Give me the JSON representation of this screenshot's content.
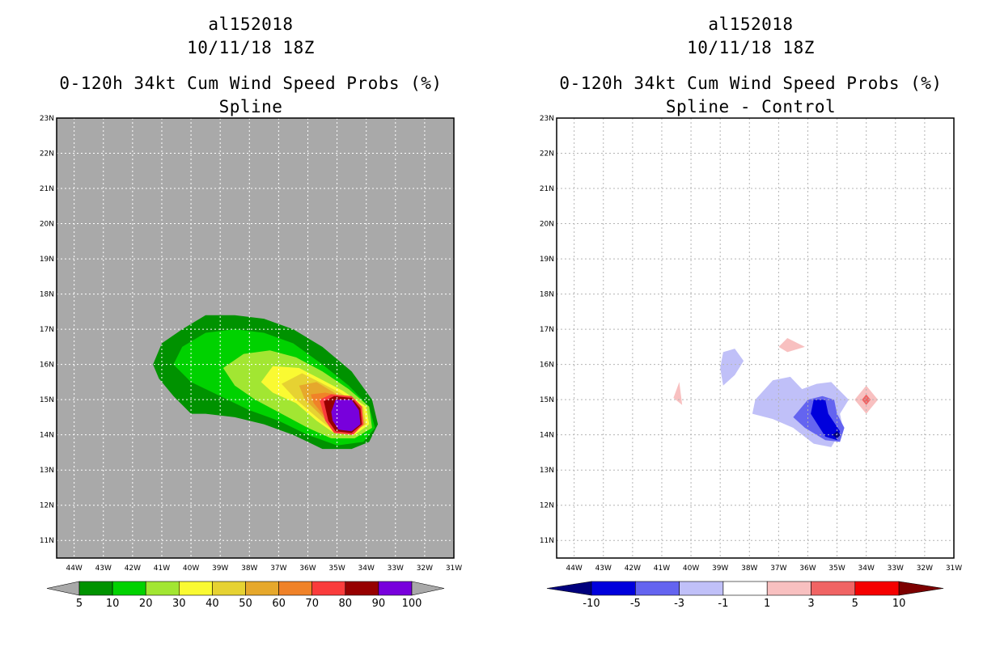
{
  "chart_data": [
    {
      "type": "filled-contour",
      "storm_id": "al152018",
      "date_label": "10/11/18 18Z",
      "title": "0-120h 34kt Cum Wind Speed Probs (%)",
      "subtitle": "Spline",
      "x_ticks": [
        "44W",
        "43W",
        "42W",
        "41W",
        "40W",
        "39W",
        "38W",
        "37W",
        "36W",
        "35W",
        "34W",
        "33W",
        "32W",
        "31W"
      ],
      "y_ticks": [
        "11N",
        "12N",
        "13N",
        "14N",
        "15N",
        "16N",
        "17N",
        "18N",
        "19N",
        "20N",
        "21N",
        "22N",
        "23N"
      ],
      "xlim": [
        -44.6,
        -31.0
      ],
      "ylim": [
        10.5,
        23.0
      ],
      "background_color": "#a9a9a9",
      "colorbar": {
        "labels": [
          "5",
          "10",
          "20",
          "30",
          "40",
          "50",
          "60",
          "70",
          "80",
          "90",
          "100"
        ],
        "colors": [
          "#009200",
          "#00d200",
          "#a2e632",
          "#fafa32",
          "#e6d232",
          "#e6a82c",
          "#f08228",
          "#fa3c3c",
          "#960000",
          "#7800dc"
        ],
        "end_color": "#a9a9a9"
      },
      "contours": [
        {
          "level": 5,
          "color": "#009200",
          "polygon": [
            [
              -41.3,
              16.0
            ],
            [
              -41.0,
              16.6
            ],
            [
              -40.3,
              17.0
            ],
            [
              -39.5,
              17.4
            ],
            [
              -38.5,
              17.4
            ],
            [
              -37.5,
              17.3
            ],
            [
              -36.5,
              17.0
            ],
            [
              -35.5,
              16.5
            ],
            [
              -34.5,
              15.8
            ],
            [
              -33.8,
              15.0
            ],
            [
              -33.6,
              14.3
            ],
            [
              -33.9,
              13.8
            ],
            [
              -34.5,
              13.6
            ],
            [
              -35.5,
              13.6
            ],
            [
              -36.5,
              14.0
            ],
            [
              -37.5,
              14.3
            ],
            [
              -38.5,
              14.5
            ],
            [
              -39.5,
              14.6
            ],
            [
              -40.0,
              14.6
            ],
            [
              -40.6,
              15.1
            ],
            [
              -41.1,
              15.6
            ]
          ]
        },
        {
          "level": 10,
          "color": "#00d200",
          "polygon": [
            [
              -40.6,
              16.0
            ],
            [
              -40.3,
              16.5
            ],
            [
              -39.5,
              16.9
            ],
            [
              -38.5,
              17.0
            ],
            [
              -37.5,
              16.9
            ],
            [
              -36.5,
              16.6
            ],
            [
              -35.5,
              16.0
            ],
            [
              -34.6,
              15.4
            ],
            [
              -33.9,
              14.8
            ],
            [
              -33.7,
              14.2
            ],
            [
              -34.1,
              13.8
            ],
            [
              -35.0,
              13.7
            ],
            [
              -36.0,
              14.0
            ],
            [
              -37.0,
              14.4
            ],
            [
              -38.0,
              14.7
            ],
            [
              -39.0,
              15.1
            ],
            [
              -40.0,
              15.5
            ]
          ]
        },
        {
          "level": 20,
          "color": "#a2e632",
          "polygon": [
            [
              -38.9,
              15.9
            ],
            [
              -38.2,
              16.3
            ],
            [
              -37.3,
              16.4
            ],
            [
              -36.4,
              16.2
            ],
            [
              -35.5,
              15.8
            ],
            [
              -34.6,
              15.3
            ],
            [
              -33.9,
              14.8
            ],
            [
              -33.8,
              14.2
            ],
            [
              -34.4,
              13.9
            ],
            [
              -35.2,
              13.9
            ],
            [
              -36.0,
              14.2
            ],
            [
              -36.9,
              14.6
            ],
            [
              -37.8,
              15.0
            ],
            [
              -38.5,
              15.4
            ]
          ]
        },
        {
          "level": 30,
          "color": "#fafa32",
          "polygon": [
            [
              -37.6,
              15.5
            ],
            [
              -37.2,
              15.95
            ],
            [
              -36.3,
              15.9
            ],
            [
              -35.6,
              15.6
            ],
            [
              -34.8,
              15.25
            ],
            [
              -34.0,
              14.8
            ],
            [
              -33.9,
              14.3
            ],
            [
              -34.4,
              14.0
            ],
            [
              -35.1,
              14.05
            ],
            [
              -35.7,
              14.4
            ],
            [
              -36.4,
              14.9
            ],
            [
              -37.2,
              15.2
            ]
          ]
        },
        {
          "level": 40,
          "color": "#e6d232",
          "polygon": [
            [
              -36.9,
              15.45
            ],
            [
              -36.2,
              15.75
            ],
            [
              -35.6,
              15.5
            ],
            [
              -34.9,
              15.2
            ],
            [
              -34.1,
              14.8
            ],
            [
              -34.0,
              14.3
            ],
            [
              -34.5,
              14.05
            ],
            [
              -35.1,
              14.1
            ],
            [
              -35.7,
              14.5
            ],
            [
              -36.4,
              15.0
            ]
          ]
        },
        {
          "level": 50,
          "color": "#e6a82c",
          "polygon": [
            [
              -36.3,
              15.4
            ],
            [
              -35.7,
              15.5
            ],
            [
              -35.1,
              15.2
            ],
            [
              -34.2,
              14.8
            ],
            [
              -34.05,
              14.3
            ],
            [
              -34.5,
              14.05
            ],
            [
              -35.1,
              14.15
            ],
            [
              -35.6,
              14.6
            ],
            [
              -36.1,
              15.0
            ]
          ]
        },
        {
          "level": 60,
          "color": "#f08228",
          "polygon": [
            [
              -35.9,
              15.15
            ],
            [
              -35.4,
              15.2
            ],
            [
              -34.8,
              15.1
            ],
            [
              -34.2,
              14.8
            ],
            [
              -34.1,
              14.3
            ],
            [
              -34.5,
              14.05
            ],
            [
              -35.1,
              14.2
            ],
            [
              -35.5,
              14.6
            ],
            [
              -35.8,
              14.9
            ]
          ]
        },
        {
          "level": 70,
          "color": "#fa3c3c",
          "polygon": [
            [
              -35.6,
              15.0
            ],
            [
              -35.2,
              15.15
            ],
            [
              -34.5,
              15.1
            ],
            [
              -34.15,
              14.8
            ],
            [
              -34.1,
              14.3
            ],
            [
              -34.45,
              14.0
            ],
            [
              -35.1,
              14.05
            ],
            [
              -35.4,
              14.4
            ]
          ]
        },
        {
          "level": 80,
          "color": "#960000",
          "polygon": [
            [
              -35.45,
              14.95
            ],
            [
              -35.1,
              15.1
            ],
            [
              -34.5,
              15.05
            ],
            [
              -34.2,
              14.75
            ],
            [
              -34.15,
              14.3
            ],
            [
              -34.5,
              14.05
            ],
            [
              -35.05,
              14.1
            ],
            [
              -35.3,
              14.4
            ]
          ]
        },
        {
          "level": 90,
          "color": "#7800dc",
          "polygon": [
            [
              -35.2,
              14.65
            ],
            [
              -35.05,
              15.0
            ],
            [
              -34.5,
              15.0
            ],
            [
              -34.25,
              14.7
            ],
            [
              -34.2,
              14.3
            ],
            [
              -34.5,
              14.1
            ],
            [
              -34.95,
              14.15
            ],
            [
              -35.15,
              14.4
            ]
          ]
        }
      ]
    },
    {
      "type": "filled-contour",
      "storm_id": "al152018",
      "date_label": "10/11/18 18Z",
      "title": "0-120h 34kt Cum Wind Speed Probs (%)",
      "subtitle": "Spline - Control",
      "x_ticks": [
        "44W",
        "43W",
        "42W",
        "41W",
        "40W",
        "39W",
        "38W",
        "37W",
        "36W",
        "35W",
        "34W",
        "33W",
        "32W",
        "31W"
      ],
      "y_ticks": [
        "11N",
        "12N",
        "13N",
        "14N",
        "15N",
        "16N",
        "17N",
        "18N",
        "19N",
        "20N",
        "21N",
        "22N",
        "23N"
      ],
      "xlim": [
        -44.6,
        -31.0
      ],
      "ylim": [
        10.5,
        23.0
      ],
      "background_color": "#ffffff",
      "colorbar": {
        "labels": [
          "-10",
          "-5",
          "-3",
          "-1",
          "1",
          "3",
          "5",
          "10"
        ],
        "colors": [
          "#0000dc",
          "#6464f0",
          "#c0c0f8",
          "#ffffff",
          "#f8c0c0",
          "#f06464",
          "#f50000"
        ],
        "low_color": "#00007d",
        "high_color": "#7d0000"
      },
      "contours": [
        {
          "level": -1,
          "color": "#c0c0f8",
          "polygon": [
            [
              -39.0,
              15.9
            ],
            [
              -38.9,
              16.35
            ],
            [
              -38.5,
              16.45
            ],
            [
              -38.2,
              16.1
            ],
            [
              -38.5,
              15.7
            ],
            [
              -38.9,
              15.4
            ]
          ]
        },
        {
          "level": -1,
          "color": "#c0c0f8",
          "polygon": [
            [
              -37.8,
              15.0
            ],
            [
              -37.2,
              15.55
            ],
            [
              -36.6,
              15.65
            ],
            [
              -36.2,
              15.3
            ],
            [
              -35.7,
              15.45
            ],
            [
              -35.2,
              15.5
            ],
            [
              -34.6,
              15.0
            ],
            [
              -34.9,
              14.6
            ],
            [
              -34.8,
              14.2
            ],
            [
              -35.2,
              13.65
            ],
            [
              -35.8,
              13.75
            ],
            [
              -36.5,
              14.2
            ],
            [
              -37.2,
              14.45
            ],
            [
              -37.9,
              14.6
            ]
          ]
        },
        {
          "level": -3,
          "color": "#6464f0",
          "polygon": [
            [
              -36.5,
              14.5
            ],
            [
              -36.0,
              15.0
            ],
            [
              -35.5,
              15.1
            ],
            [
              -35.1,
              15.0
            ],
            [
              -35.0,
              14.6
            ],
            [
              -34.75,
              14.2
            ],
            [
              -34.9,
              13.8
            ],
            [
              -35.4,
              13.85
            ],
            [
              -36.1,
              14.2
            ]
          ]
        },
        {
          "level": -5,
          "color": "#0000dc",
          "polygon": [
            [
              -35.9,
              14.6
            ],
            [
              -35.8,
              15.0
            ],
            [
              -35.4,
              15.0
            ],
            [
              -35.3,
              14.6
            ],
            [
              -34.9,
              14.1
            ],
            [
              -35.0,
              13.85
            ],
            [
              -35.4,
              13.95
            ]
          ]
        },
        {
          "level": -10,
          "color": "#00007d",
          "polygon": [
            [
              -35.15,
              14.0
            ],
            [
              -35.0,
              14.1
            ],
            [
              -34.88,
              14.0
            ],
            [
              -35.0,
              13.9
            ]
          ]
        },
        {
          "level": 1,
          "color": "#f8c0c0",
          "polygon": [
            [
              -40.6,
              15.05
            ],
            [
              -40.4,
              15.5
            ],
            [
              -40.3,
              14.85
            ]
          ]
        },
        {
          "level": 1,
          "color": "#f8c0c0",
          "polygon": [
            [
              -37.0,
              16.5
            ],
            [
              -36.7,
              16.75
            ],
            [
              -36.1,
              16.5
            ],
            [
              -36.7,
              16.35
            ]
          ]
        },
        {
          "level": 1,
          "color": "#f8c0c0",
          "polygon": [
            [
              -34.4,
              15.0
            ],
            [
              -34.0,
              15.4
            ],
            [
              -33.6,
              15.0
            ],
            [
              -34.0,
              14.6
            ]
          ]
        },
        {
          "level": 3,
          "color": "#f06464",
          "polygon": [
            [
              -34.15,
              15.0
            ],
            [
              -34.0,
              15.15
            ],
            [
              -33.85,
              15.0
            ],
            [
              -34.0,
              14.85
            ]
          ]
        }
      ]
    }
  ]
}
